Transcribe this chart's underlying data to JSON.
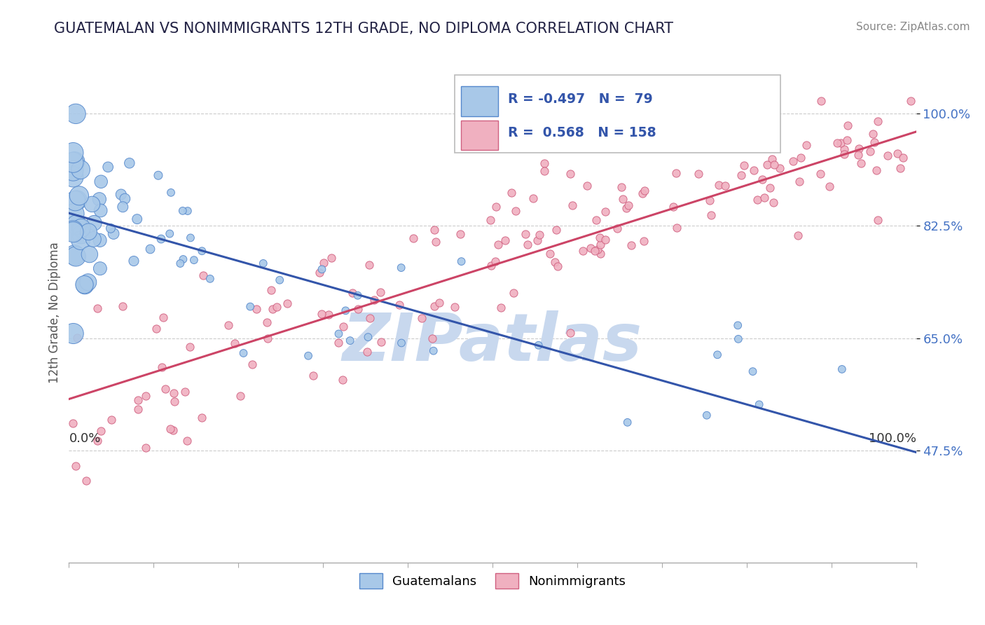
{
  "title": "GUATEMALAN VS NONIMMIGRANTS 12TH GRADE, NO DIPLOMA CORRELATION CHART",
  "source_text": "Source: ZipAtlas.com",
  "ylabel": "12th Grade, No Diploma",
  "xlim": [
    0.0,
    1.0
  ],
  "ylim": [
    0.3,
    1.08
  ],
  "x_tick_labels": [
    "0.0%",
    "100.0%"
  ],
  "x_tick_values": [
    0.0,
    1.0
  ],
  "y_tick_labels": [
    "47.5%",
    "65.0%",
    "82.5%",
    "100.0%"
  ],
  "y_tick_values": [
    0.475,
    0.65,
    0.825,
    1.0
  ],
  "watermark": "ZIPatlas",
  "legend_r_blue": "-0.497",
  "legend_n_blue": "79",
  "legend_r_pink": "0.568",
  "legend_n_pink": "158",
  "blue_fill": "#a8c8e8",
  "blue_edge": "#5588cc",
  "pink_fill": "#f0b0c0",
  "pink_edge": "#d06080",
  "blue_series_label": "Guatemalans",
  "pink_series_label": "Nonimmigrants",
  "blue_trendline_color": "#3355aa",
  "pink_trendline_color": "#cc4466",
  "blue_trendline_x": [
    0.0,
    1.0
  ],
  "blue_trendline_y": [
    0.845,
    0.472
  ],
  "pink_trendline_x": [
    0.0,
    1.0
  ],
  "pink_trendline_y": [
    0.555,
    0.972
  ],
  "grid_color": "#cccccc",
  "background_color": "#ffffff",
  "watermark_color": "#c8d8ee",
  "axis_label_color": "#555555",
  "tick_color": "#4472c4",
  "title_color": "#222244",
  "source_color": "#888888"
}
